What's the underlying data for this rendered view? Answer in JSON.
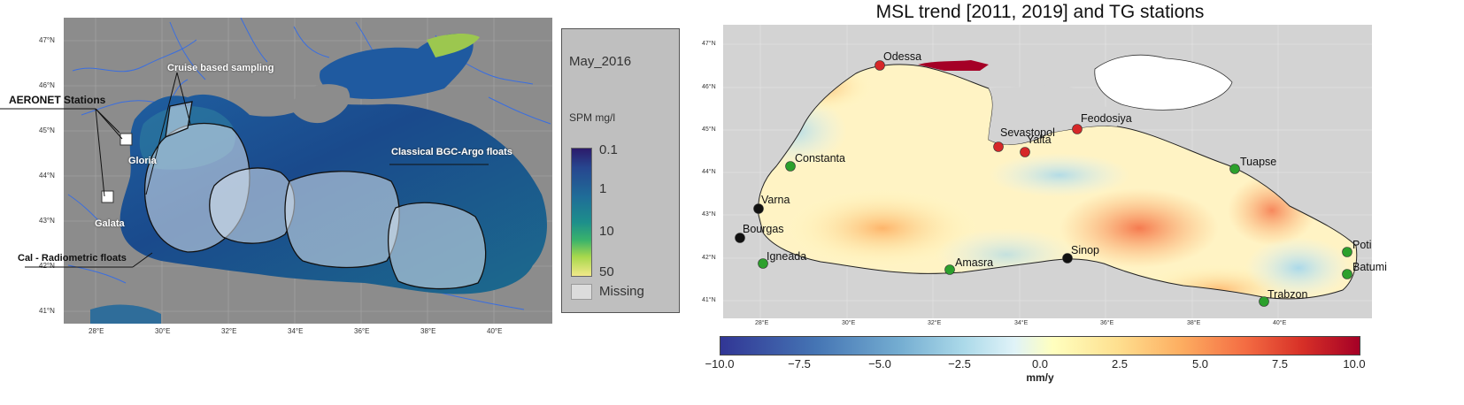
{
  "left_panel": {
    "lat_ticks": [
      "47°N",
      "46°N",
      "45°N",
      "44°N",
      "43°N",
      "42°N",
      "41°N"
    ],
    "lon_ticks": [
      "28°E",
      "30°E",
      "32°E",
      "34°E",
      "36°E",
      "38°E",
      "40°E"
    ],
    "annotations": {
      "aeronet": "AERONET Stations",
      "cruise": "Cruise based sampling",
      "gloria": "Gloria",
      "galata": "Galata",
      "bgc_argo": "Classical BGC-Argo floats",
      "cal_radiometric": "Cal - Radiometric floats"
    },
    "legend": {
      "date": "May_2016",
      "unit": "SPM mg/l",
      "ticks": [
        "0.1",
        "1",
        "10",
        "50"
      ],
      "missing": "Missing"
    }
  },
  "right_panel": {
    "title": "MSL trend [2011, 2019] and TG stations",
    "lat_ticks": [
      "47°N",
      "46°N",
      "45°N",
      "44°N",
      "43°N",
      "42°N",
      "41°N"
    ],
    "lon_ticks": [
      "28°E",
      "30°E",
      "32°E",
      "34°E",
      "36°E",
      "38°E",
      "40°E"
    ],
    "colorbar": {
      "ticks": [
        "−10.0",
        "−7.5",
        "−5.0",
        "−2.5",
        "0.0",
        "2.5",
        "5.0",
        "7.5",
        "10.0"
      ],
      "unit": "mm/y",
      "colors": [
        "#313695",
        "#4575b4",
        "#74add1",
        "#e0f3f8",
        "#ffffbf",
        "#fdae61",
        "#f46d43",
        "#a50026"
      ]
    },
    "stations": [
      {
        "name": "Odessa",
        "color": "#d62728"
      },
      {
        "name": "Sevastopol",
        "color": "#d62728"
      },
      {
        "name": "Yalta",
        "color": "#d62728"
      },
      {
        "name": "Feodosiya",
        "color": "#d62728"
      },
      {
        "name": "Constanta",
        "color": "#2ca02c"
      },
      {
        "name": "Tuapse",
        "color": "#2ca02c"
      },
      {
        "name": "Varna",
        "color": "#111111"
      },
      {
        "name": "Bourgas",
        "color": "#111111"
      },
      {
        "name": "Igneada",
        "color": "#2ca02c"
      },
      {
        "name": "Amasra",
        "color": "#2ca02c"
      },
      {
        "name": "Sinop",
        "color": "#111111"
      },
      {
        "name": "Poti",
        "color": "#2ca02c"
      },
      {
        "name": "Batumi",
        "color": "#2ca02c"
      },
      {
        "name": "Trabzon",
        "color": "#2ca02c"
      }
    ]
  }
}
